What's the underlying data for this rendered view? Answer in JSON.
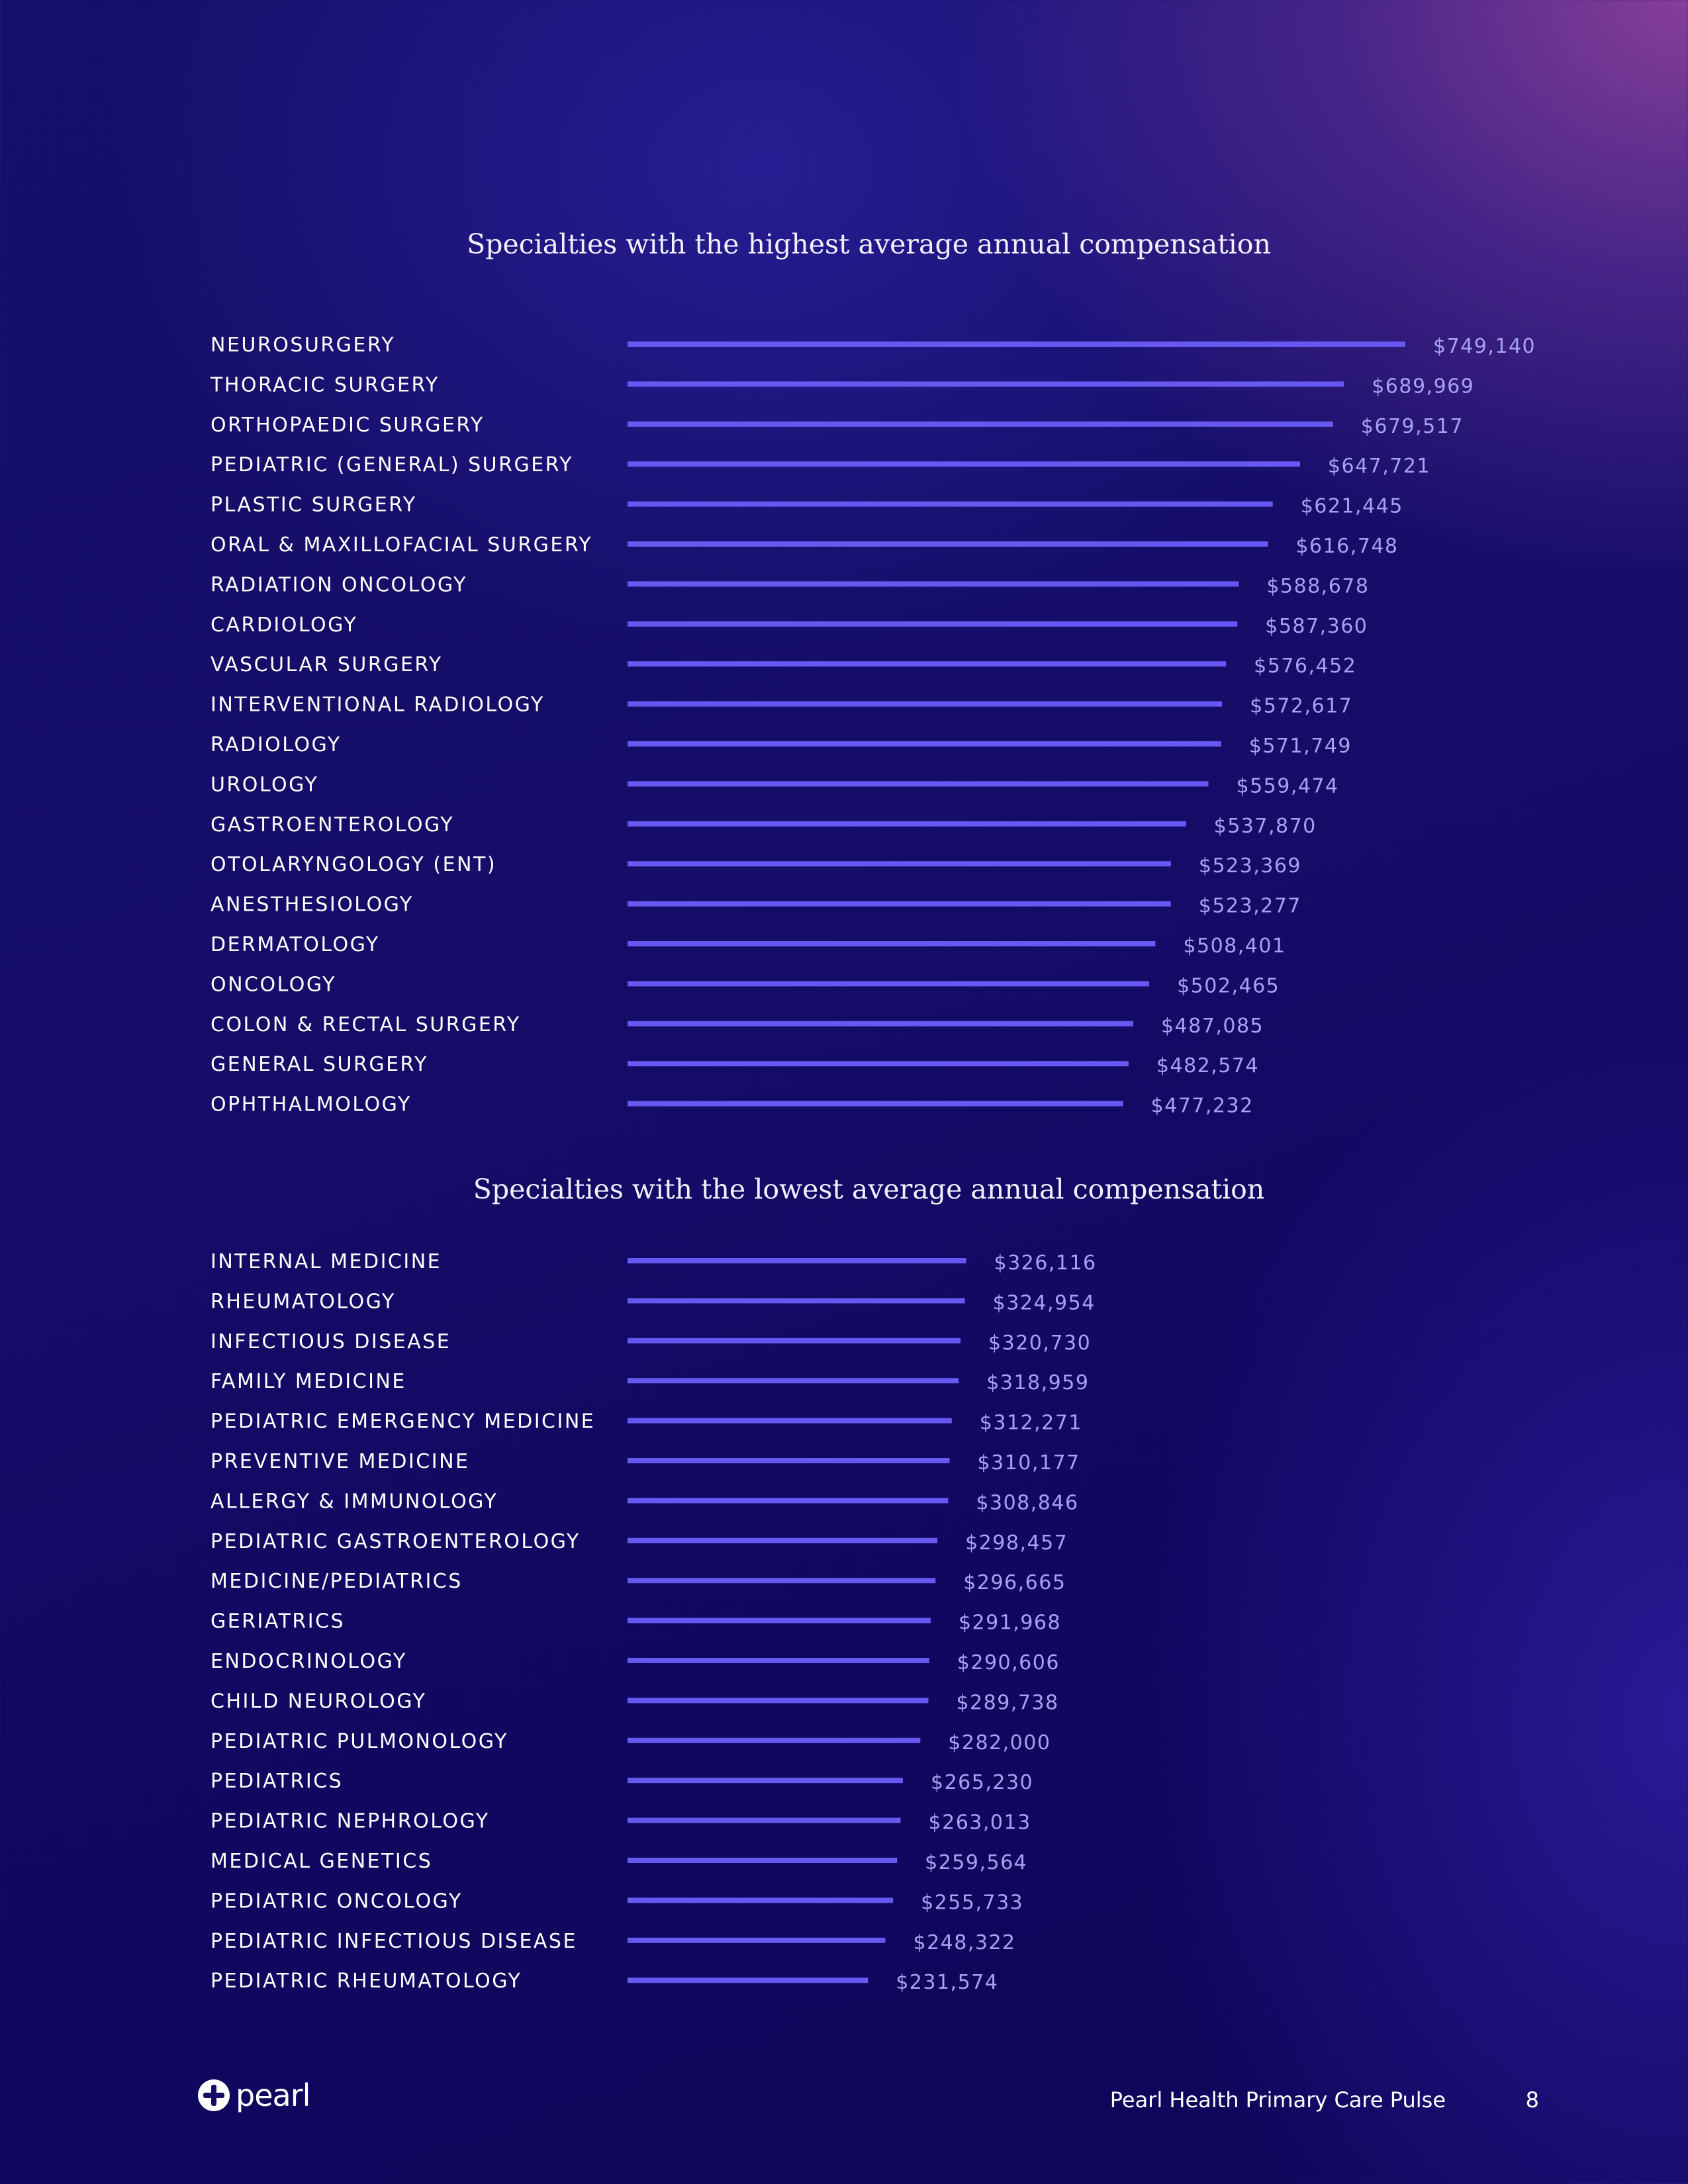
{
  "footer": {
    "logo_text": "pearl",
    "report_name": "Pearl Health Primary Care Pulse",
    "page_number": "8",
    "logo_icon": "pearl-plus-icon"
  },
  "colors": {
    "bar": "#6658f0",
    "value_text": "#a7a1f2",
    "label_text": "#ffffff"
  },
  "chart_data": [
    {
      "type": "bar",
      "orientation": "horizontal",
      "title": "Specialties with the highest average annual compensation",
      "xlim": [
        0,
        749140
      ],
      "grid": false,
      "categories": [
        "NEUROSURGERY",
        "THORACIC SURGERY",
        "ORTHOPAEDIC SURGERY",
        "PEDIATRIC (GENERAL) SURGERY",
        "PLASTIC SURGERY",
        "ORAL & MAXILLOFACIAL SURGERY",
        "RADIATION ONCOLOGY",
        "CARDIOLOGY",
        "VASCULAR SURGERY",
        "INTERVENTIONAL RADIOLOGY",
        "RADIOLOGY",
        "UROLOGY",
        "GASTROENTEROLOGY",
        "OTOLARYNGOLOGY (ENT)",
        "ANESTHESIOLOGY",
        "DERMATOLOGY",
        "ONCOLOGY",
        "COLON & RECTAL SURGERY",
        "GENERAL SURGERY",
        "OPHTHALMOLOGY"
      ],
      "values": [
        749140,
        689969,
        679517,
        647721,
        621445,
        616748,
        588678,
        587360,
        576452,
        572617,
        571749,
        559474,
        537870,
        523369,
        523277,
        508401,
        502465,
        487085,
        482574,
        477232
      ],
      "value_labels": [
        "$749,140",
        "$689,969",
        "$679,517",
        "$647,721",
        "$621,445",
        "$616,748",
        "$588,678",
        "$587,360",
        "$576,452",
        "$572,617",
        "$571,749",
        "$559,474",
        "$537,870",
        "$523,369",
        "$523,277",
        "$508,401",
        "$502,465",
        "$487,085",
        "$482,574",
        "$477,232"
      ]
    },
    {
      "type": "bar",
      "orientation": "horizontal",
      "title": "Specialties with the lowest average annual compensation",
      "xlim": [
        0,
        749140
      ],
      "grid": false,
      "categories": [
        "INTERNAL MEDICINE",
        "RHEUMATOLOGY",
        "INFECTIOUS DISEASE",
        "FAMILY MEDICINE",
        "PEDIATRIC EMERGENCY MEDICINE",
        "PREVENTIVE MEDICINE",
        "ALLERGY & IMMUNOLOGY",
        "PEDIATRIC GASTROENTEROLOGY",
        "MEDICINE/PEDIATRICS",
        "GERIATRICS",
        "ENDOCRINOLOGY",
        "CHILD NEUROLOGY",
        "PEDIATRIC PULMONOLOGY",
        "PEDIATRICS",
        "PEDIATRIC NEPHROLOGY",
        "MEDICAL GENETICS",
        "PEDIATRIC ONCOLOGY",
        "PEDIATRIC INFECTIOUS DISEASE",
        "PEDIATRIC RHEUMATOLOGY"
      ],
      "values": [
        326116,
        324954,
        320730,
        318959,
        312271,
        310177,
        308846,
        298457,
        296665,
        291968,
        290606,
        289738,
        282000,
        265230,
        263013,
        259564,
        255733,
        248322,
        231574
      ],
      "value_labels": [
        "$326,116",
        "$324,954",
        "$320,730",
        "$318,959",
        "$312,271",
        "$310,177",
        "$308,846",
        "$298,457",
        "$296,665",
        "$291,968",
        "$290,606",
        "$289,738",
        "$282,000",
        "$265,230",
        "$263,013",
        "$259,564",
        "$255,733",
        "$248,322",
        "$231,574"
      ]
    }
  ]
}
